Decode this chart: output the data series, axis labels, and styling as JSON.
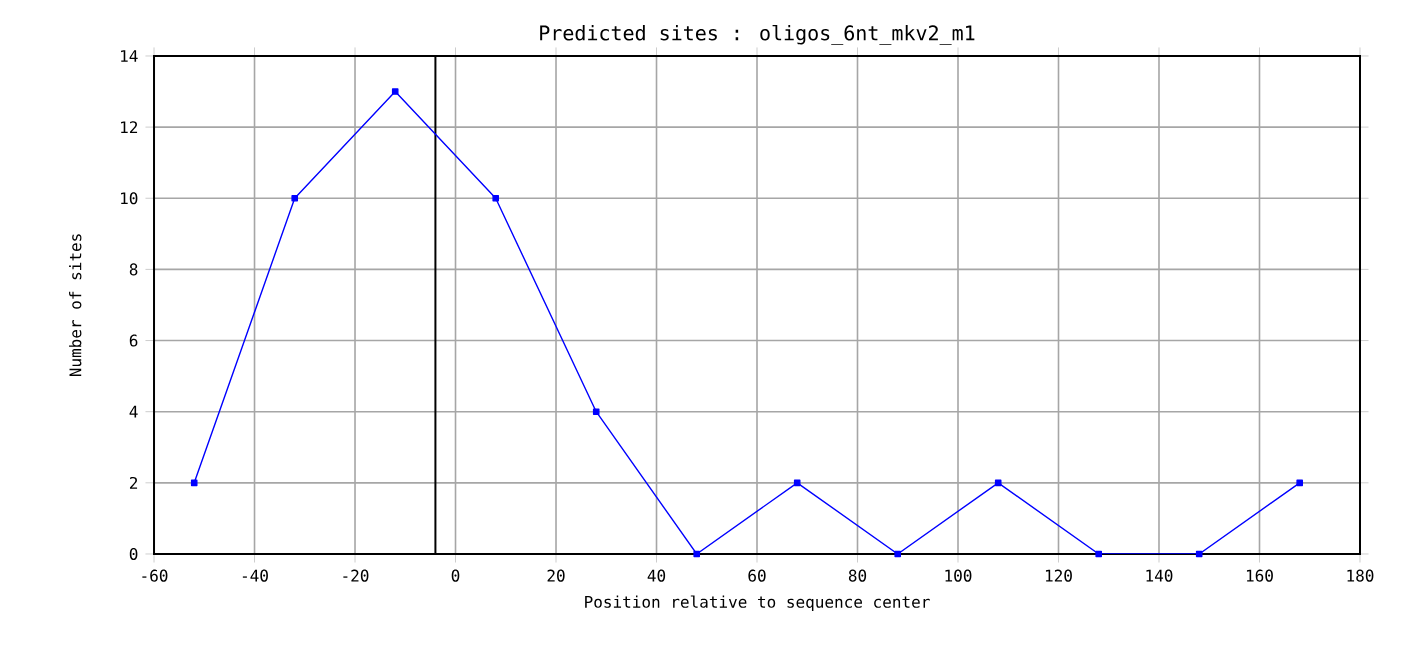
{
  "chart_data": {
    "type": "line",
    "title": "Predicted sites : oligos_6nt_mkv2_m1",
    "xlabel": "Position relative to sequence center",
    "ylabel": "Number of sites",
    "x": [
      -52,
      -32,
      -12,
      8,
      28,
      48,
      68,
      88,
      108,
      128,
      148,
      168
    ],
    "series": [
      {
        "color": "#0000ff",
        "values": [
          2,
          10,
          13,
          10,
          4,
          0,
          2,
          0,
          2,
          0,
          0,
          2
        ]
      }
    ],
    "xlim": [
      -60,
      180
    ],
    "xticks": [
      -60,
      -40,
      -20,
      0,
      20,
      40,
      60,
      80,
      100,
      120,
      140,
      160,
      180
    ],
    "ylim": [
      0,
      14
    ],
    "yticks": [
      0,
      2,
      4,
      6,
      8,
      10,
      12,
      14
    ],
    "ref_lines": [
      {
        "axis": "x",
        "value": -4,
        "color": "#000000"
      }
    ],
    "grid": true,
    "marker": "square",
    "line_style": "solid"
  }
}
